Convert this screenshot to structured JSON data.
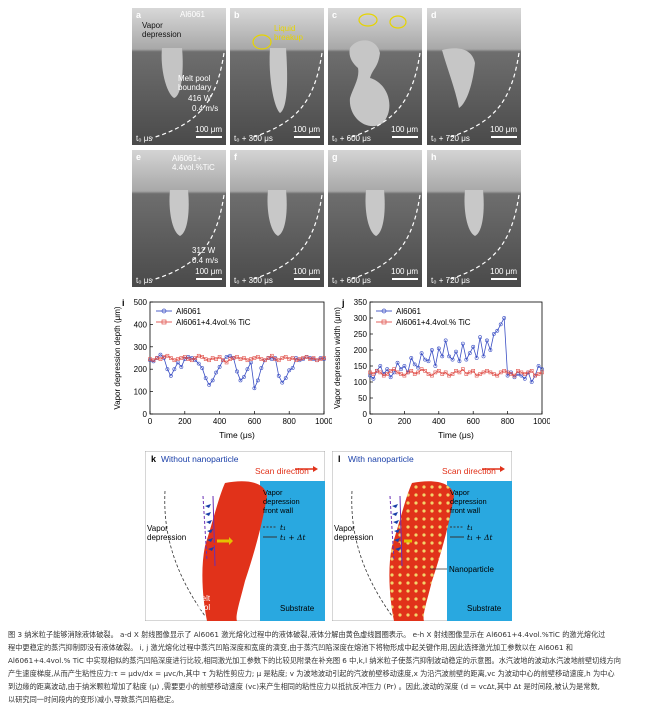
{
  "panels_top": [
    {
      "letter": "a",
      "time": "t₀ μs",
      "scale": "100 μm"
    },
    {
      "letter": "b",
      "time": "t₀ + 300 μs",
      "scale": "100 μm"
    },
    {
      "letter": "c",
      "time": "t₀ + 600 μs",
      "scale": "100 μm"
    },
    {
      "letter": "d",
      "time": "t₀ + 720 μs",
      "scale": "100 μm"
    }
  ],
  "panels_bottom": [
    {
      "letter": "e",
      "time": "t₀ μs",
      "scale": "100 μm"
    },
    {
      "letter": "f",
      "time": "t₀ + 300 μs",
      "scale": "100 μm"
    },
    {
      "letter": "g",
      "time": "t₀ + 600 μs",
      "scale": "100 μm"
    },
    {
      "letter": "h",
      "time": "t₀ + 720 μs",
      "scale": "100 μm"
    }
  ],
  "panel_a": {
    "material": "Al6061",
    "vapor": "Vapor\ndepression",
    "boundary": "Melt pool\nboundary",
    "power": "416 W",
    "speed": "0.4 m/s"
  },
  "panel_b": {
    "liquid": "Liquid\nbreakup"
  },
  "panel_e": {
    "material": "Al6061+\n4.4vol.%TiC",
    "power": "312 W",
    "speed": "0.4 m/s"
  },
  "chart_data": [
    {
      "type": "line",
      "panel": "i",
      "xlabel": "Time (μs)",
      "ylabel": "Vapor depression depth (μm)",
      "xlim": [
        0,
        1000
      ],
      "ylim": [
        0,
        500
      ],
      "xticks": [
        0,
        200,
        400,
        600,
        800,
        1000
      ],
      "yticks": [
        0,
        100,
        200,
        300,
        400,
        500
      ],
      "series": [
        {
          "name": "Al6061",
          "color": "#3b4fc4",
          "marker": "circle",
          "x": [
            0,
            20,
            40,
            60,
            80,
            100,
            120,
            140,
            160,
            180,
            200,
            220,
            240,
            260,
            280,
            300,
            320,
            340,
            360,
            380,
            400,
            420,
            440,
            460,
            480,
            500,
            520,
            540,
            560,
            580,
            600,
            620,
            640,
            660,
            680,
            700,
            720,
            740,
            760,
            780,
            800,
            820,
            840,
            860,
            880,
            900,
            920,
            940,
            960,
            980,
            1000
          ],
          "y": [
            240,
            235,
            250,
            265,
            250,
            200,
            170,
            200,
            230,
            210,
            245,
            255,
            250,
            240,
            225,
            205,
            160,
            130,
            150,
            185,
            210,
            240,
            255,
            260,
            250,
            190,
            150,
            165,
            200,
            230,
            115,
            150,
            205,
            240,
            250,
            245,
            250,
            170,
            140,
            160,
            195,
            205,
            250,
            240,
            245,
            255,
            250,
            245,
            240,
            250,
            245
          ]
        },
        {
          "name": "Al6061+4.4vol.% TiC",
          "color": "#e0504a",
          "marker": "square",
          "x": [
            0,
            20,
            40,
            60,
            80,
            100,
            120,
            140,
            160,
            180,
            200,
            220,
            240,
            260,
            280,
            300,
            320,
            340,
            360,
            380,
            400,
            420,
            440,
            460,
            480,
            500,
            520,
            540,
            560,
            580,
            600,
            620,
            640,
            660,
            680,
            700,
            720,
            740,
            760,
            780,
            800,
            820,
            840,
            860,
            880,
            900,
            920,
            940,
            960,
            980,
            1000
          ],
          "y": [
            245,
            240,
            250,
            245,
            255,
            260,
            250,
            240,
            245,
            250,
            255,
            245,
            240,
            250,
            260,
            255,
            245,
            240,
            250,
            245,
            255,
            240,
            230,
            245,
            250,
            255,
            245,
            250,
            240,
            245,
            250,
            255,
            245,
            240,
            250,
            260,
            245,
            240,
            250,
            255,
            245,
            250,
            240,
            245,
            250,
            255,
            245,
            250,
            240,
            245,
            250
          ]
        }
      ]
    },
    {
      "type": "line",
      "panel": "j",
      "xlabel": "Time (μs)",
      "ylabel": "Vapor depression width (μm)",
      "xlim": [
        0,
        1000
      ],
      "ylim": [
        0,
        350
      ],
      "xticks": [
        0,
        200,
        400,
        600,
        800,
        1000
      ],
      "yticks": [
        0,
        50,
        100,
        150,
        200,
        250,
        300,
        350
      ],
      "series": [
        {
          "name": "Al6061",
          "color": "#3b4fc4",
          "marker": "circle",
          "x": [
            0,
            20,
            40,
            60,
            80,
            100,
            120,
            140,
            160,
            180,
            200,
            220,
            240,
            260,
            280,
            300,
            320,
            340,
            360,
            380,
            400,
            420,
            440,
            460,
            480,
            500,
            520,
            540,
            560,
            580,
            600,
            620,
            640,
            660,
            680,
            700,
            720,
            740,
            760,
            780,
            800,
            820,
            840,
            860,
            880,
            900,
            920,
            940,
            960,
            980,
            1000
          ],
          "y": [
            120,
            110,
            135,
            150,
            125,
            140,
            115,
            130,
            160,
            140,
            150,
            130,
            175,
            155,
            145,
            190,
            170,
            165,
            200,
            150,
            205,
            180,
            230,
            180,
            170,
            195,
            165,
            220,
            170,
            190,
            210,
            175,
            240,
            180,
            230,
            200,
            250,
            260,
            280,
            300,
            120,
            130,
            115,
            125,
            120,
            110,
            130,
            100,
            120,
            150,
            140
          ]
        },
        {
          "name": "Al6061+4.4vol.% TiC",
          "color": "#e0504a",
          "marker": "square",
          "x": [
            0,
            20,
            40,
            60,
            80,
            100,
            120,
            140,
            160,
            180,
            200,
            220,
            240,
            260,
            280,
            300,
            320,
            340,
            360,
            380,
            400,
            420,
            440,
            460,
            480,
            500,
            520,
            540,
            560,
            580,
            600,
            620,
            640,
            660,
            680,
            700,
            720,
            740,
            760,
            780,
            800,
            820,
            840,
            860,
            880,
            900,
            920,
            940,
            960,
            980,
            1000
          ],
          "y": [
            130,
            125,
            135,
            130,
            120,
            125,
            135,
            140,
            130,
            125,
            120,
            130,
            135,
            125,
            130,
            140,
            135,
            125,
            120,
            130,
            135,
            125,
            130,
            120,
            125,
            135,
            130,
            140,
            125,
            130,
            135,
            120,
            125,
            130,
            135,
            130,
            125,
            120,
            130,
            135,
            130,
            125,
            120,
            135,
            130,
            125,
            130,
            135,
            120,
            125,
            130
          ]
        }
      ]
    }
  ],
  "schematic_k": {
    "letter": "k",
    "title": "Without nanoparticle",
    "scan": "Scan direction",
    "front_wall": "Vapor\ndepression\nfront wall",
    "vapor": "Vapor\ndepression",
    "t1": "t₁",
    "t2": "t₁ + Δt",
    "melt": "Melt\npool",
    "substrate": "Substrate"
  },
  "schematic_l": {
    "letter": "l",
    "title": "With nanoparticle",
    "scan": "Scan direction",
    "front_wall": "Vapor\ndepression\nfront wall",
    "vapor": "Vapor\ndepression",
    "t1": "t₁",
    "t2": "t₁ + Δt",
    "nano": "Nanoparticle",
    "substrate": "Substrate"
  },
  "caption": [
    "图 3 纳米粒子能够消除液体破裂。 a-d X 射线图像显示了 Al6061 激光熔化过程中的液体破裂,液体分解由黄色虚线圆圈表示。 e-h X 射线图像显示在 Al6061+4.4vol.%TiC 的激光熔化过",
    "程中更稳定的蒸汽抑制即没有液体破裂。 i, j 激光熔化过程中蒸汽凹陷深度和宽度的演变,由于蒸汽凹陷深度在熔池下将物形成中起关键作用,因此选择激光加工参数以在 Al6061 和",
    "Al6061+4.4vol.% TiC 中实现相似的蒸汽凹陷深度进行比较,相同激光加工参数下的比较见附录在补充图 6 中,k,l 纳米粒子使蒸汽抑制波动稳定的示意图。水汽波地的波动水汽波地前壁切线方向",
    "产生速度梯度,从而产生粘性应力:τ = μdv/dx = μvc/h,其中 τ 为粘性剪应力; μ 是粘度; v 为波地波动引起的汽波前壁移动速度,x 为沿汽波前壁的距离,vc 为波动中心的前壁移动速度,h 为中心",
    "到边缘的距离波动,由于纳米颗粒增加了粘度 (μ) ,需要更小的前壁移动速度 (vc)来产生相同的粘性应力以抵抗反冲压力 (Pr) 。因此,波动的深度 (d = vcΔt,其中 Δt 是时间段,被认为是常数,",
    "以研究同一时间段内的变形)减小,导致蒸汽凹陷稳定。"
  ]
}
